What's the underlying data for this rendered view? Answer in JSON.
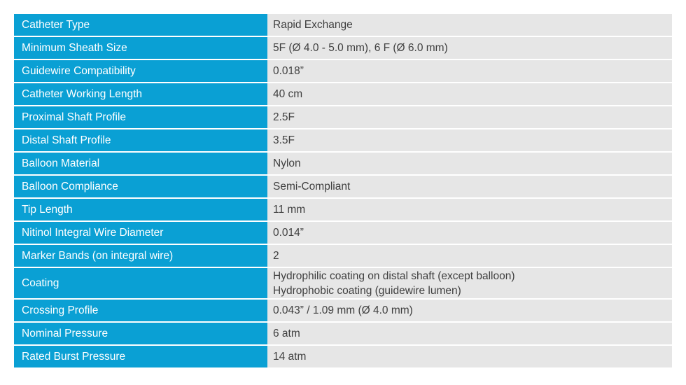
{
  "specs": {
    "rows": [
      {
        "label": "Catheter Type",
        "value": "Rapid Exchange"
      },
      {
        "label": "Minimum Sheath Size",
        "value": "5F (Ø 4.0 - 5.0 mm), 6 F (Ø 6.0 mm)"
      },
      {
        "label": "Guidewire Compatibility",
        "value": "0.018”"
      },
      {
        "label": "Catheter Working Length",
        "value": "40 cm"
      },
      {
        "label": "Proximal Shaft Profile",
        "value": "2.5F"
      },
      {
        "label": "Distal Shaft Profile",
        "value": "3.5F"
      },
      {
        "label": "Balloon Material",
        "value": "Nylon"
      },
      {
        "label": "Balloon Compliance",
        "value": "Semi-Compliant"
      },
      {
        "label": "Tip Length",
        "value": "11 mm"
      },
      {
        "label": "Nitinol Integral Wire Diameter",
        "value": "0.014”"
      },
      {
        "label": "Marker Bands (on integral wire)",
        "value": "2"
      },
      {
        "label": "Coating",
        "value_line1": "Hydrophilic coating on distal shaft (except balloon)",
        "value_line2": "Hydrophobic coating (guidewire lumen)"
      },
      {
        "label": "Crossing Profile",
        "value": "0.043” / 1.09 mm (Ø 4.0 mm)"
      },
      {
        "label": "Nominal Pressure",
        "value": "6 atm"
      },
      {
        "label": "Rated Burst Pressure",
        "value": "14 atm"
      }
    ]
  },
  "colors": {
    "label_background": "#0aa0d4",
    "label_text": "#ffffff",
    "value_background": "#e6e6e6",
    "value_text": "#3f3f3f"
  }
}
